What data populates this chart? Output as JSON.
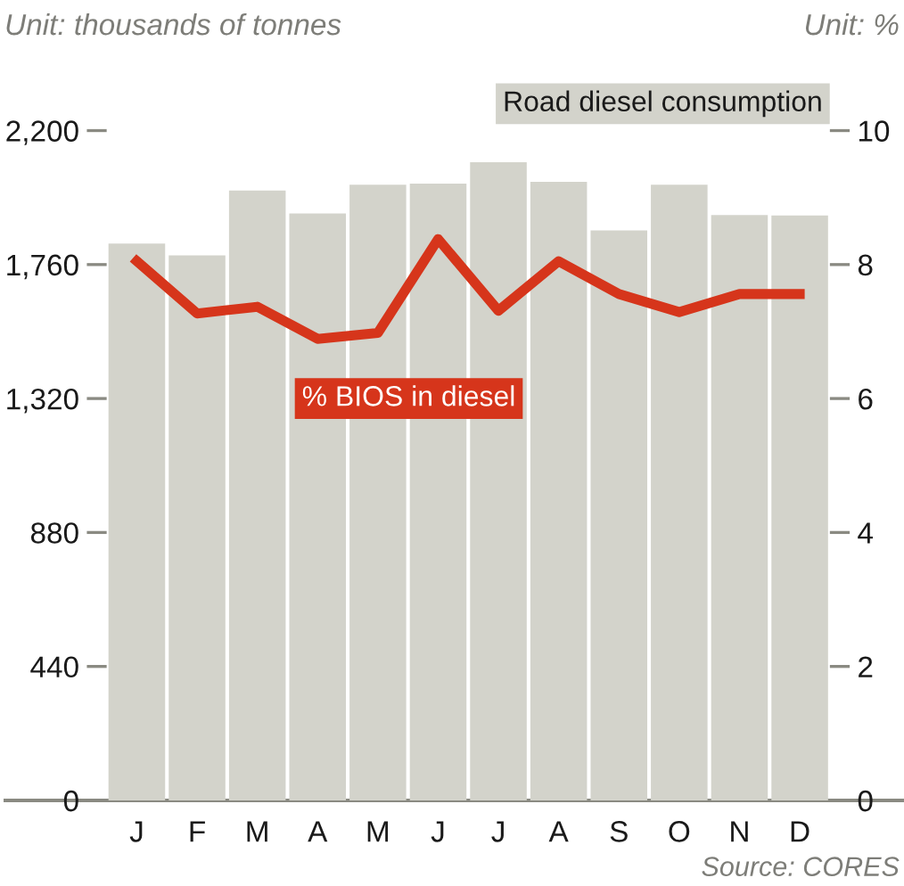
{
  "chart_data": {
    "type": "bar",
    "ylabel": "Unit: thousands of tonnes",
    "y2label": "Unit: %",
    "categories": [
      "J",
      "F",
      "M",
      "A",
      "M",
      "J",
      "J",
      "A",
      "S",
      "O",
      "N",
      "D"
    ],
    "series": [
      {
        "name": "Road diesel consumption",
        "color": "#d3d3cb",
        "values": [
          1829,
          1790,
          2003,
          1928,
          2022,
          2026,
          2096,
          2032,
          1872,
          2022,
          1923,
          1921
        ]
      },
      {
        "name": "% BIOS in diesel",
        "type": "line",
        "axis": "y2",
        "color": "#d6351b",
        "values": [
          8.05,
          7.27,
          7.37,
          6.89,
          6.98,
          8.38,
          7.31,
          8.05,
          7.56,
          7.29,
          7.56,
          7.56
        ]
      }
    ],
    "ylim": [
      0,
      2200
    ],
    "yticks": [
      0,
      440,
      880,
      {
        "value": 1320,
        "label": "1,320"
      },
      {
        "value": 1760,
        "label": "1,760"
      },
      {
        "value": 2200,
        "label": "2,200"
      }
    ],
    "y2lim": [
      0,
      10
    ],
    "y2ticks": [
      0,
      2,
      4,
      6,
      8,
      10
    ],
    "grid": false,
    "legend": false,
    "marker": "none",
    "line_style": "solid",
    "annotations": [
      "Source: CORES"
    ]
  }
}
